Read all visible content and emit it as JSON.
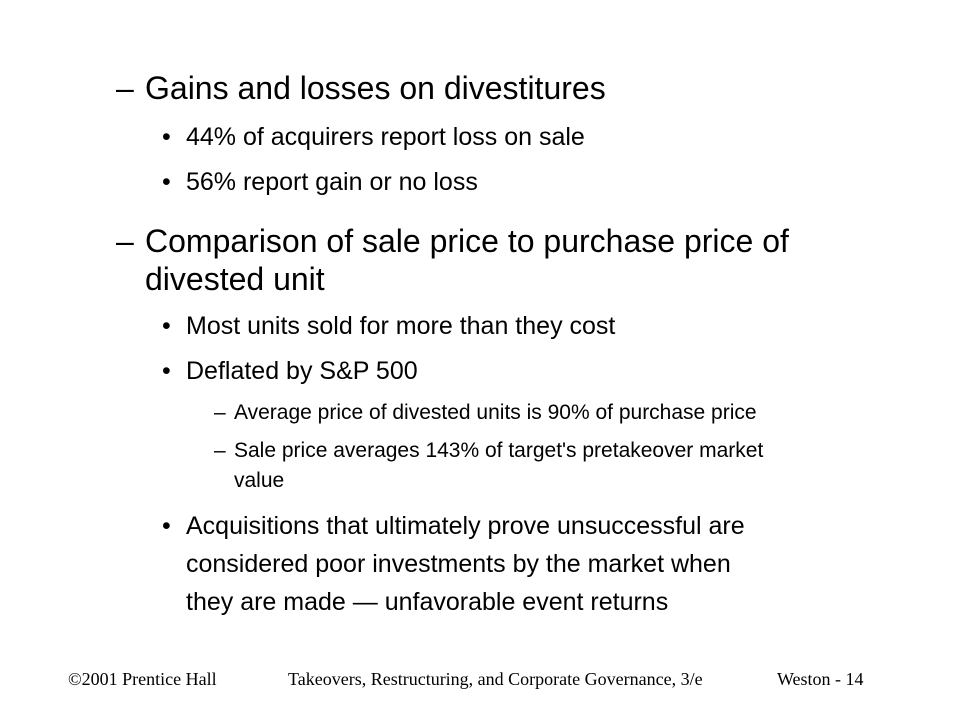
{
  "slide": {
    "items": [
      {
        "marker": "–",
        "text": "Gains and losses on divestitures"
      },
      {
        "marker": "•",
        "text": "44% of acquirers report loss on sale"
      },
      {
        "marker": "•",
        "text": "56% report gain or no loss"
      },
      {
        "marker": "–",
        "text": "Comparison of sale price to purchase price of",
        "text2": "divested unit"
      },
      {
        "marker": "•",
        "text": "Most units sold for more than they cost"
      },
      {
        "marker": "•",
        "text": "Deflated by S&P 500"
      },
      {
        "marker": "–",
        "text": "Average price of divested units is 90% of purchase price"
      },
      {
        "marker": "–",
        "text": "Sale price averages 143% of target's pretakeover market",
        "text2": "value"
      },
      {
        "marker": "•",
        "text": "Acquisitions that ultimately prove unsuccessful are",
        "text2": "considered poor investments by the market when",
        "text3": "they are made — unfavorable event returns"
      }
    ]
  },
  "footer": {
    "copyright": "©2001 Prentice Hall",
    "book": "Takeovers, Restructuring, and Corporate Governance, 3/e",
    "page": "Weston - 14"
  }
}
